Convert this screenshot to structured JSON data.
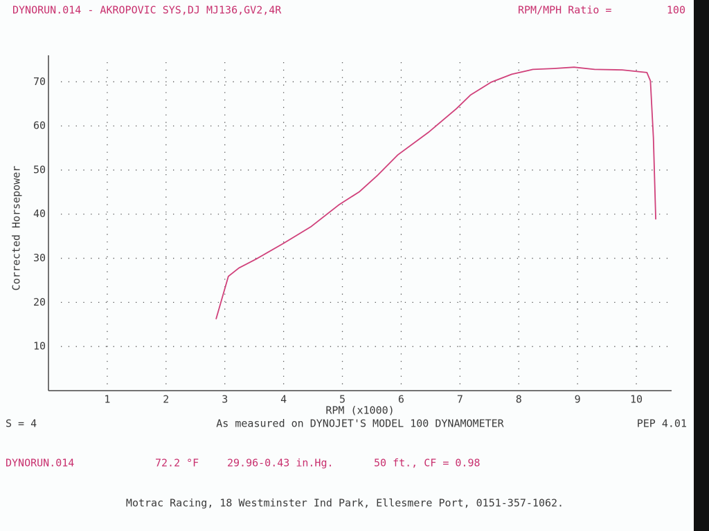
{
  "header": {
    "title": "DYNORUN.014 - AKROPOVIC SYS,DJ MJ136,GV2,4R",
    "ratio_label": "RPM/MPH Ratio =",
    "ratio_value": "100"
  },
  "chart_data": {
    "type": "line",
    "xlabel": "RPM (x1000)",
    "ylabel": "Corrected Horsepower",
    "color": "#d0407a",
    "grid": true,
    "x": [
      2.85,
      3.06,
      3.24,
      3.53,
      4.0,
      4.47,
      4.94,
      5.29,
      5.59,
      5.94,
      6.47,
      6.94,
      7.18,
      7.53,
      7.88,
      8.24,
      8.59,
      8.94,
      9.29,
      9.76,
      10.18,
      10.24,
      10.29,
      10.33
    ],
    "values": [
      16.2,
      25.9,
      27.8,
      29.8,
      33.4,
      37.2,
      42.1,
      45.1,
      48.7,
      53.4,
      58.6,
      63.9,
      67.0,
      69.9,
      71.7,
      72.8,
      73.0,
      73.3,
      72.8,
      72.7,
      72.1,
      70.2,
      57.3,
      38.8
    ],
    "xlim": [
      0,
      10.6
    ],
    "xticks": [
      1,
      2,
      3,
      4,
      5,
      6,
      7,
      8,
      9,
      10
    ],
    "ylim": [
      0,
      76
    ],
    "yticks": [
      10,
      20,
      30,
      40,
      50,
      60,
      70
    ]
  },
  "footer": {
    "s": "S = 4",
    "measured": "As measured on DYNOJET'S MODEL 100 DYNAMOMETER",
    "pep": "PEP 4.01",
    "run": "DYNORUN.014",
    "temp": "72.2 °F",
    "pressure": "29.96-0.43 in.Hg.",
    "alt_cf": "50 ft., CF = 0.98",
    "address": "Motrac Racing, 18 Westminster Ind Park, Ellesmere Port, 0151-357-1062."
  }
}
